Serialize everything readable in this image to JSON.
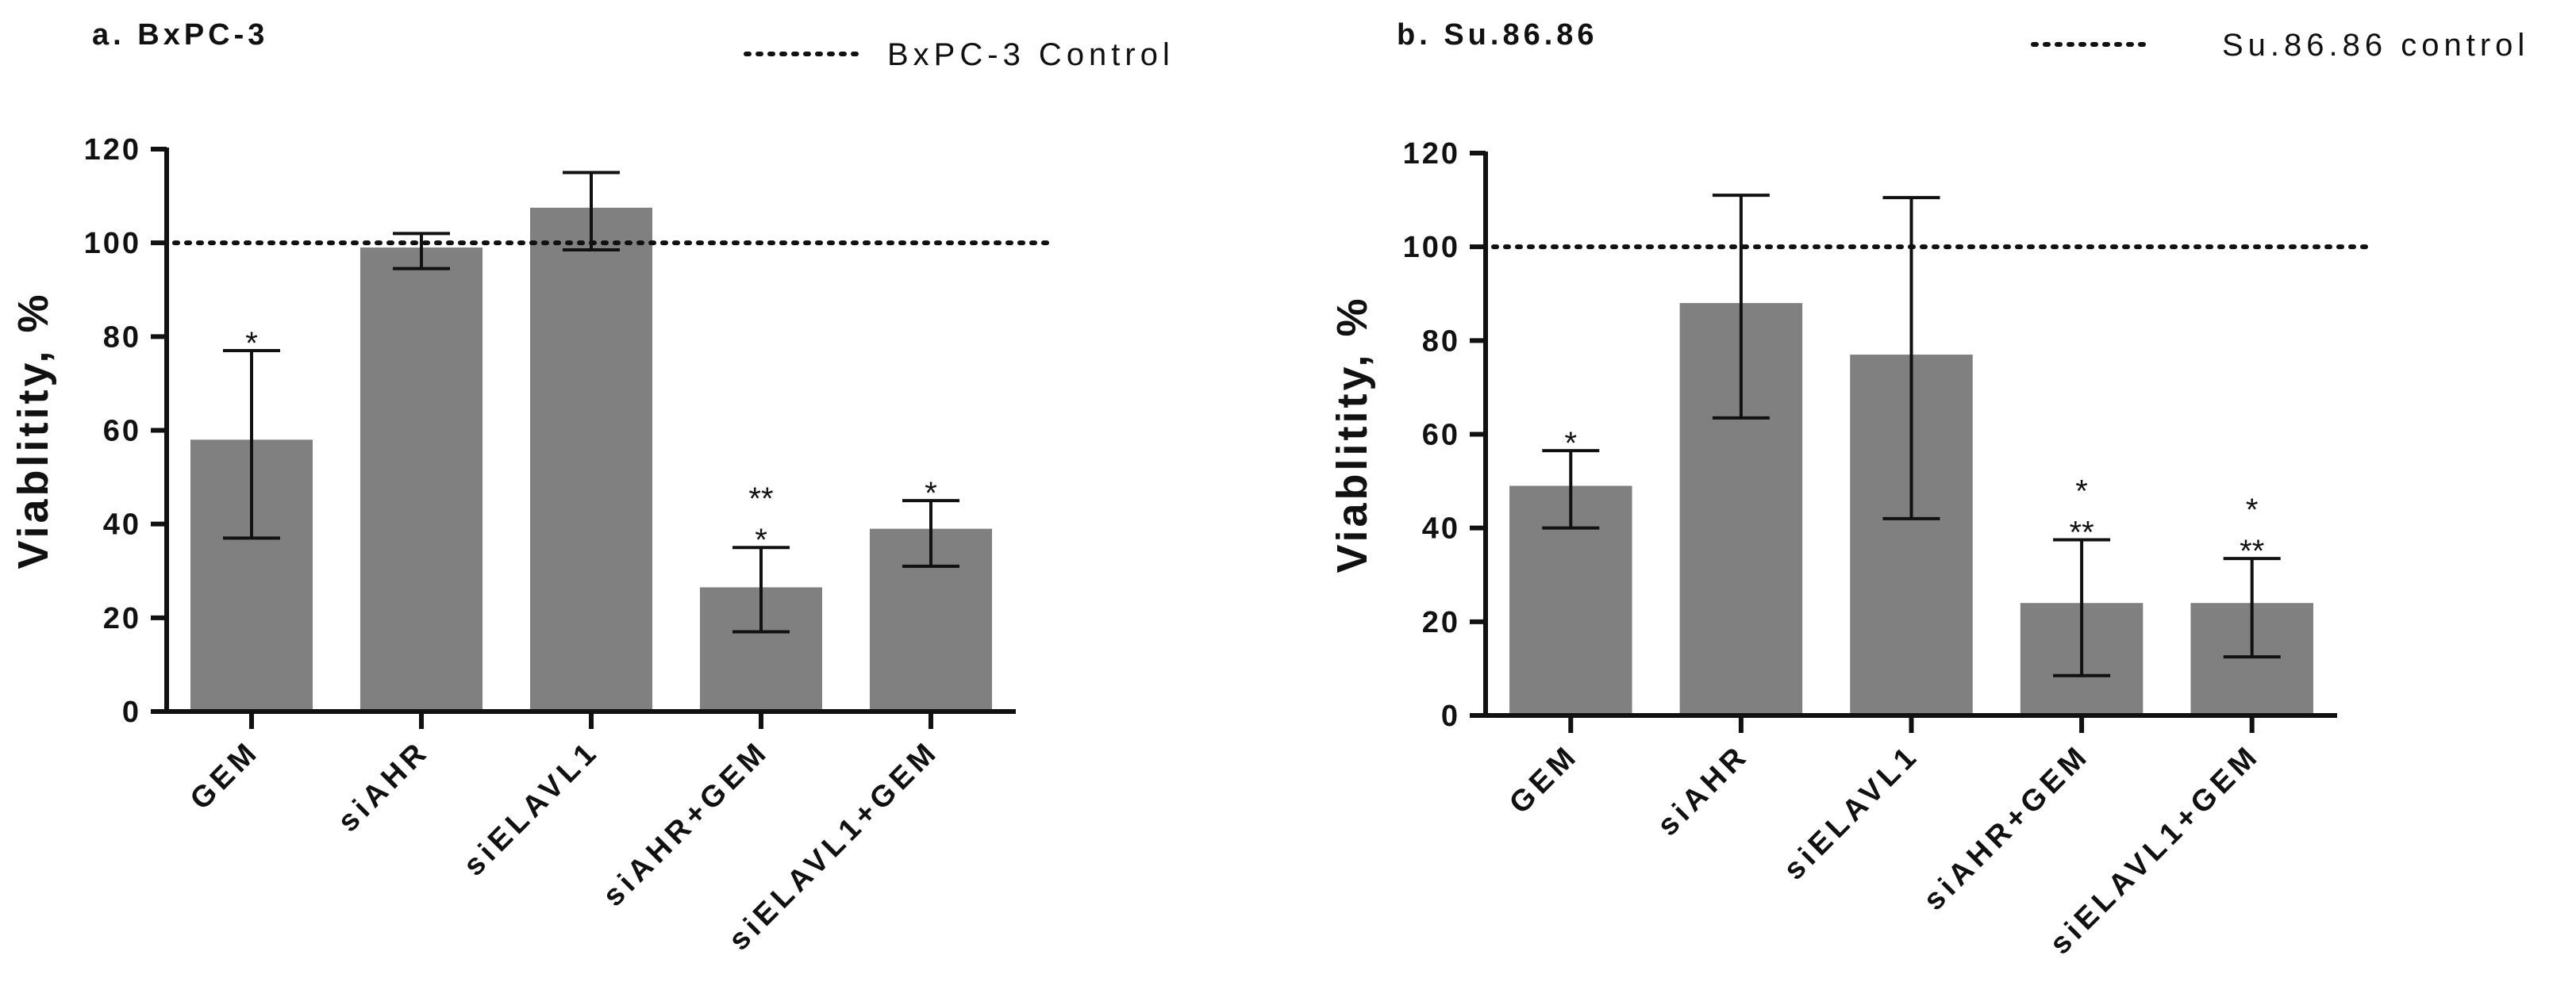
{
  "chart_data": [
    {
      "type": "bar",
      "title": "a. BxPC-3",
      "legend": {
        "label": "BxPC-3 Control",
        "placement": "top-right",
        "style": "dotted"
      },
      "ylabel": "Viablitity, %",
      "xlabel": "",
      "ylim": [
        0,
        120
      ],
      "yticks": [
        0,
        20,
        40,
        60,
        80,
        100,
        120
      ],
      "reference_line": {
        "value": 100,
        "label": "BxPC-3 Control"
      },
      "categories": [
        "GEM",
        "siAHR",
        "siELAVL1",
        "siAHR+GEM",
        "siELAVL1+GEM"
      ],
      "values": [
        58,
        99,
        107.5,
        26.5,
        39
      ],
      "error_low": [
        37,
        94.5,
        98.5,
        17,
        31
      ],
      "error_high": [
        77,
        102,
        115,
        35,
        45
      ],
      "annotations": [
        [
          "*"
        ],
        [],
        [],
        [
          "*",
          "**"
        ],
        [
          "*"
        ]
      ],
      "bar_color": "#808080"
    },
    {
      "type": "bar",
      "title": "b. Su.86.86",
      "legend": {
        "label": "Su.86.86 control",
        "placement": "top-right",
        "style": "dotted"
      },
      "ylabel": "Viablitity, %",
      "xlabel": "",
      "ylim": [
        0,
        120
      ],
      "yticks": [
        0,
        20,
        40,
        60,
        80,
        100,
        120
      ],
      "reference_line": {
        "value": 100,
        "label": "Su.86.86 control"
      },
      "categories": [
        "GEM",
        "siAHR",
        "siELAVL1",
        "siAHR+GEM",
        "siELAVL1+GEM"
      ],
      "values": [
        49,
        88,
        77,
        24,
        24
      ],
      "error_low": [
        40,
        63.5,
        42,
        8.5,
        12.5
      ],
      "error_high": [
        56.5,
        111,
        110.5,
        37.5,
        33.5
      ],
      "annotations": [
        [
          "*"
        ],
        [],
        [],
        [
          "**",
          "*"
        ],
        [
          "**",
          "*"
        ]
      ],
      "bar_color": "#808080"
    }
  ]
}
